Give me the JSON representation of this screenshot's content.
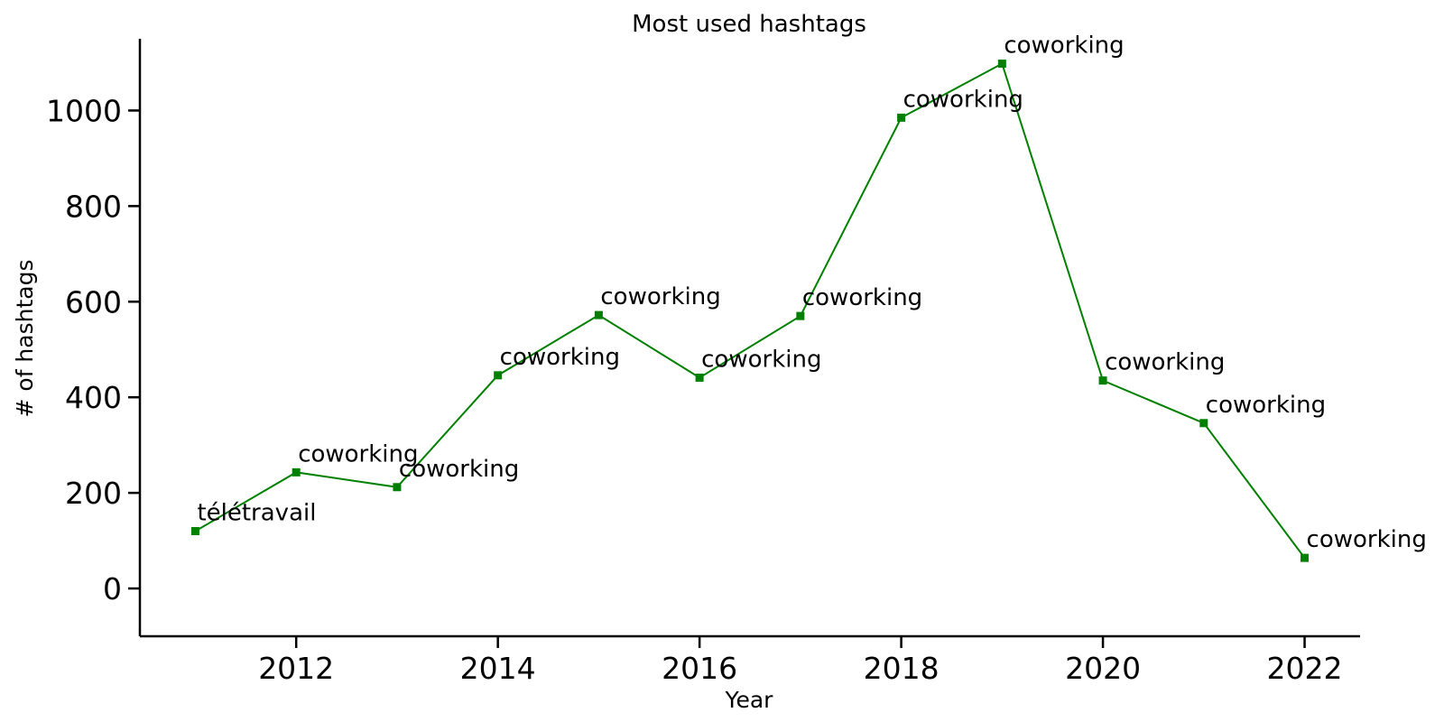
{
  "chart_data": {
    "type": "line",
    "title": "Most used hashtags",
    "xlabel": "Year",
    "ylabel": "# of hashtags",
    "xlim": [
      2010.45,
      2022.55
    ],
    "ylim": [
      -100,
      1150
    ],
    "xticks": [
      2012,
      2014,
      2016,
      2018,
      2020,
      2022
    ],
    "yticks": [
      0,
      200,
      400,
      600,
      800,
      1000
    ],
    "grid": false,
    "legend": "none",
    "series": [
      {
        "color": "#008000",
        "marker": "square",
        "points": [
          {
            "x": 2011,
            "y": 120,
            "label": "télétravail"
          },
          {
            "x": 2012,
            "y": 243,
            "label": "coworking"
          },
          {
            "x": 2013,
            "y": 212,
            "label": "coworking"
          },
          {
            "x": 2014,
            "y": 446,
            "label": "coworking"
          },
          {
            "x": 2015,
            "y": 572,
            "label": "coworking"
          },
          {
            "x": 2016,
            "y": 441,
            "label": "coworking"
          },
          {
            "x": 2017,
            "y": 570,
            "label": "coworking"
          },
          {
            "x": 2018,
            "y": 985,
            "label": "coworking"
          },
          {
            "x": 2019,
            "y": 1098,
            "label": "coworking"
          },
          {
            "x": 2020,
            "y": 435,
            "label": "coworking"
          },
          {
            "x": 2021,
            "y": 346,
            "label": "coworking"
          },
          {
            "x": 2022,
            "y": 64,
            "label": "coworking"
          }
        ]
      }
    ]
  }
}
